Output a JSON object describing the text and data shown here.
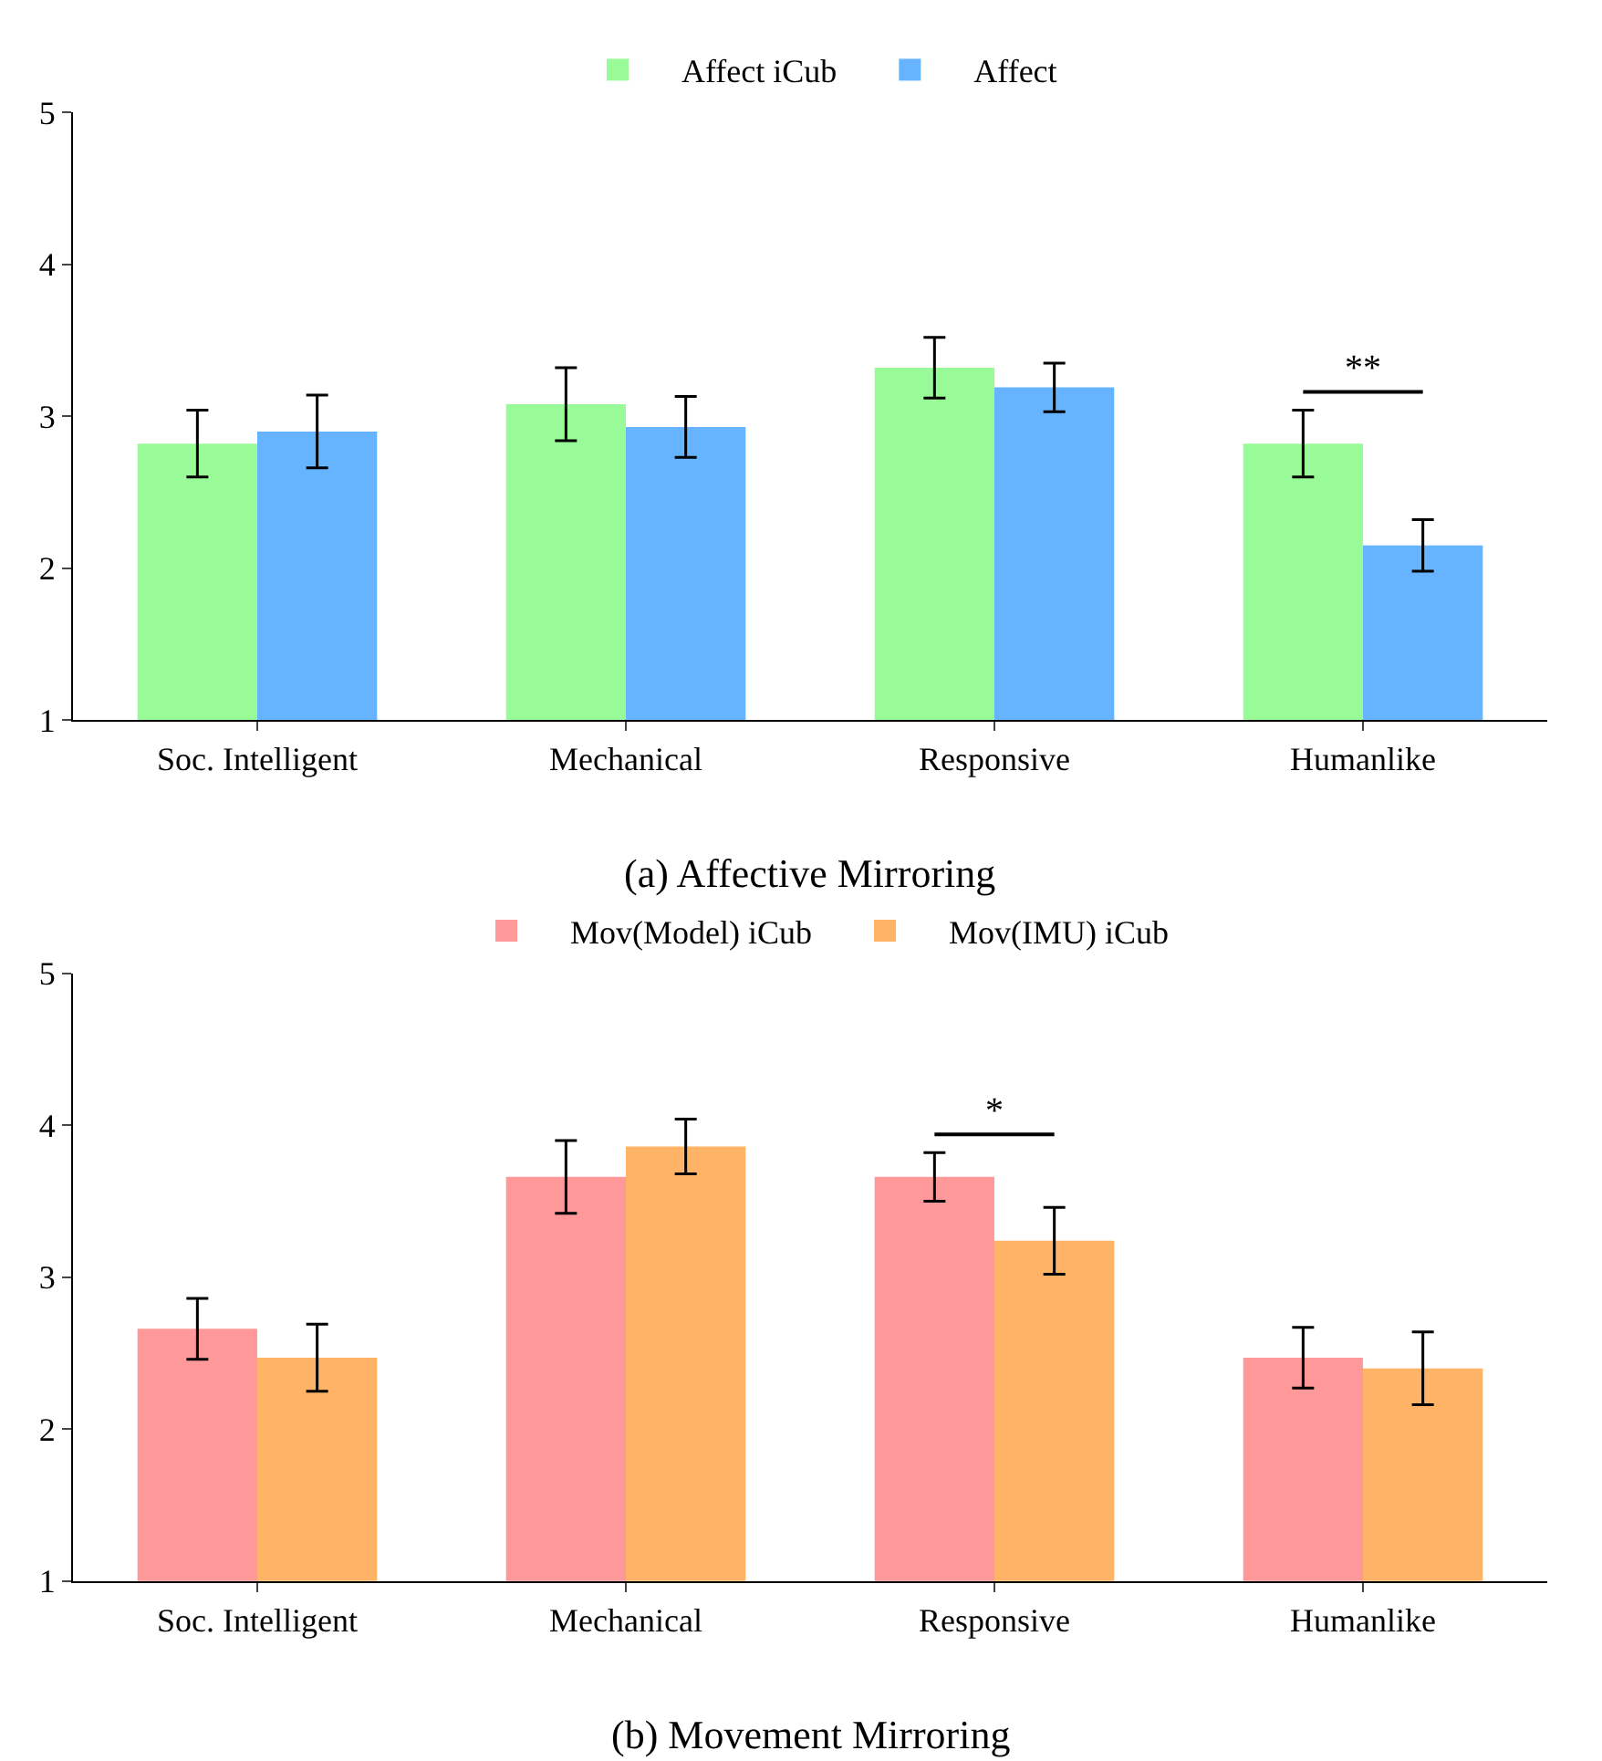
{
  "chart_data": [
    {
      "type": "bar",
      "categories": [
        "Soc. Intelligent",
        "Mechanical",
        "Responsive",
        "Humanlike"
      ],
      "series": [
        {
          "name": "Affect iCub",
          "color": "#98fb98",
          "values": [
            2.82,
            3.08,
            3.32,
            2.82
          ],
          "errors": [
            0.22,
            0.24,
            0.2,
            0.22
          ]
        },
        {
          "name": "Affect",
          "color": "#66b3ff",
          "values": [
            2.9,
            2.93,
            3.19,
            2.15
          ],
          "errors": [
            0.24,
            0.2,
            0.16,
            0.17
          ]
        }
      ],
      "ylim": [
        1,
        5
      ],
      "yticks": [
        1,
        2,
        3,
        4,
        5
      ],
      "legend": "top",
      "annotations": [
        "**",
        "(a) Affective Mirroring"
      ]
    },
    {
      "type": "bar",
      "categories": [
        "Soc. Intelligent",
        "Mechanical",
        "Responsive",
        "Humanlike"
      ],
      "series": [
        {
          "name": "Mov(Model) iCub",
          "color": "#ff9999",
          "values": [
            2.66,
            3.66,
            3.66,
            2.47
          ],
          "errors": [
            0.2,
            0.24,
            0.16,
            0.2
          ]
        },
        {
          "name": "Mov(IMU) iCub",
          "color": "#ffb366",
          "values": [
            2.47,
            3.86,
            3.24,
            2.4
          ],
          "errors": [
            0.22,
            0.18,
            0.22,
            0.24
          ]
        }
      ],
      "ylim": [
        1,
        5
      ],
      "yticks": [
        1,
        2,
        3,
        4,
        5
      ],
      "legend": "top",
      "annotations": [
        "*",
        "(b) Movement Mirroring"
      ]
    }
  ]
}
